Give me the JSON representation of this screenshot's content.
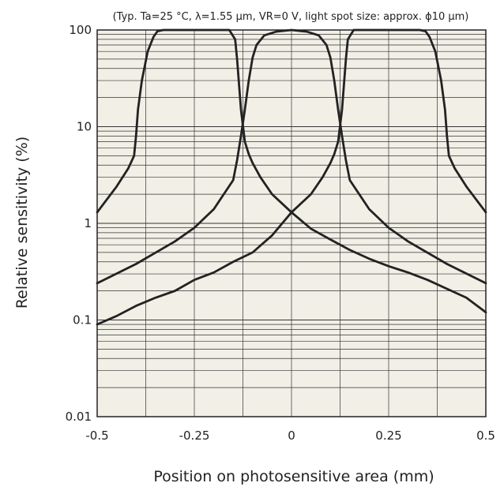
{
  "chart_data": {
    "type": "line",
    "title": "",
    "annotation": "(Typ. Ta=25 °C, λ=1.55 μm, VR=0 V, light spot size: approx. ϕ10 μm)",
    "xlabel": "Position on photosensitive area (mm)",
    "ylabel": "Relative sensitivity (%)",
    "xlim": [
      -0.5,
      0.5
    ],
    "ylim": [
      0.01,
      100
    ],
    "yscale": "log",
    "xticks": [
      -0.5,
      -0.25,
      0,
      0.25,
      0.5
    ],
    "xtick_labels": [
      "-0.5",
      "-0.25",
      "0",
      "0.25",
      "0.5"
    ],
    "yticks": [
      0.01,
      0.1,
      1,
      10,
      100
    ],
    "ytick_labels": [
      "0.01",
      "0.1",
      "1",
      "10",
      "100"
    ],
    "grid": true,
    "legend": "none",
    "colors": {
      "plot_background": "#f1efe6",
      "line": "#222222",
      "grid": "#333333"
    },
    "series": [
      {
        "x": [
          -0.5,
          -0.45,
          -0.42,
          -0.405,
          -0.4,
          -0.395,
          -0.385,
          -0.37,
          -0.355,
          -0.345,
          -0.33,
          -0.3,
          -0.2,
          -0.16,
          -0.145,
          -0.14,
          -0.13,
          -0.12,
          -0.11,
          -0.1,
          -0.08,
          -0.05,
          0,
          0.05,
          0.1,
          0.15,
          0.2,
          0.25,
          0.3,
          0.35,
          0.4,
          0.45,
          0.5
        ],
        "y": [
          1.3,
          2.4,
          3.7,
          5,
          8,
          15,
          30,
          60,
          85,
          97,
          100,
          100,
          100,
          100,
          80,
          50,
          15,
          7,
          5.2,
          4.2,
          3,
          2,
          1.3,
          0.88,
          0.68,
          0.53,
          0.43,
          0.36,
          0.31,
          0.26,
          0.21,
          0.17,
          0.12
        ]
      },
      {
        "x": [
          -0.5,
          -0.4,
          -0.3,
          -0.25,
          -0.2,
          -0.15,
          -0.14,
          -0.13,
          -0.12,
          -0.11,
          -0.1,
          -0.09,
          -0.07,
          -0.04,
          0,
          0.04,
          0.07,
          0.09,
          0.1,
          0.11,
          0.12,
          0.13,
          0.14,
          0.15,
          0.2,
          0.25,
          0.3,
          0.4,
          0.5
        ],
        "y": [
          0.24,
          0.38,
          0.65,
          0.9,
          1.4,
          2.8,
          4.5,
          8,
          15,
          30,
          52,
          70,
          88,
          96,
          100,
          96,
          88,
          70,
          52,
          30,
          15,
          8,
          4.5,
          2.8,
          1.4,
          0.9,
          0.65,
          0.38,
          0.24
        ]
      },
      {
        "x": [
          -0.5,
          -0.45,
          -0.4,
          -0.35,
          -0.3,
          -0.25,
          -0.2,
          -0.15,
          -0.1,
          -0.05,
          0,
          0.05,
          0.08,
          0.1,
          0.11,
          0.12,
          0.13,
          0.14,
          0.145,
          0.16,
          0.2,
          0.3,
          0.33,
          0.345,
          0.355,
          0.37,
          0.385,
          0.395,
          0.4,
          0.405,
          0.42,
          0.45,
          0.5
        ],
        "y": [
          0.09,
          0.11,
          0.14,
          0.17,
          0.2,
          0.26,
          0.31,
          0.4,
          0.5,
          0.75,
          1.3,
          2,
          3,
          4.2,
          5.2,
          7,
          15,
          50,
          80,
          100,
          100,
          100,
          100,
          97,
          85,
          60,
          30,
          15,
          8,
          5,
          3.7,
          2.4,
          1.3
        ]
      }
    ]
  }
}
